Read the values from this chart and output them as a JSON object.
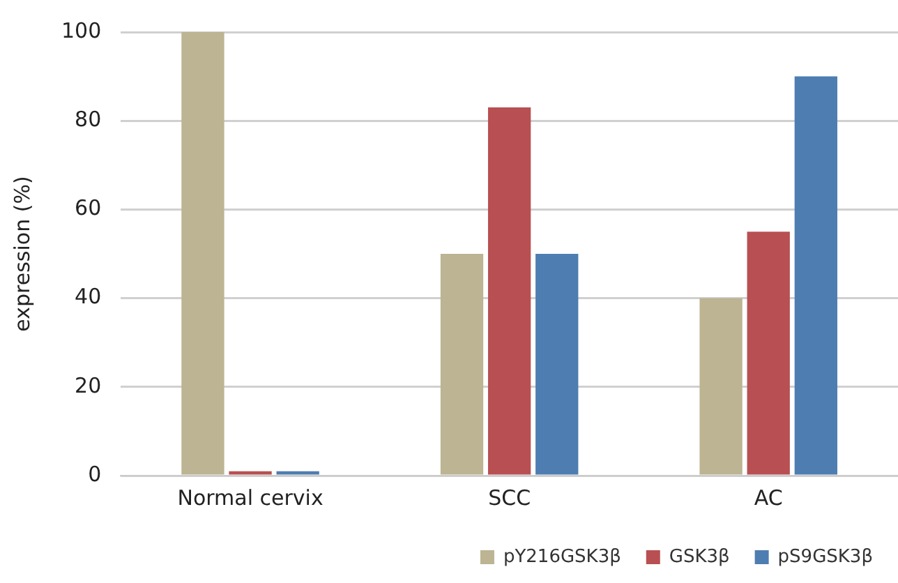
{
  "chart_data": {
    "type": "bar",
    "ylabel": "expression (%)",
    "categories": [
      "Normal cervix",
      "SCC",
      "AC"
    ],
    "series": [
      {
        "name": "pY216GSK3β",
        "color": "#bcb492",
        "values": [
          100,
          50,
          40
        ]
      },
      {
        "name": "GSK3β",
        "color": "#b84f52",
        "values": [
          1,
          83,
          55
        ]
      },
      {
        "name": "pS9GSK3β",
        "color": "#4e7db1",
        "values": [
          1,
          50,
          90
        ]
      }
    ],
    "ylim": [
      0,
      100
    ],
    "yticks": [
      0,
      20,
      40,
      60,
      80,
      100
    ],
    "grid": "y",
    "legend": "bottom right"
  }
}
